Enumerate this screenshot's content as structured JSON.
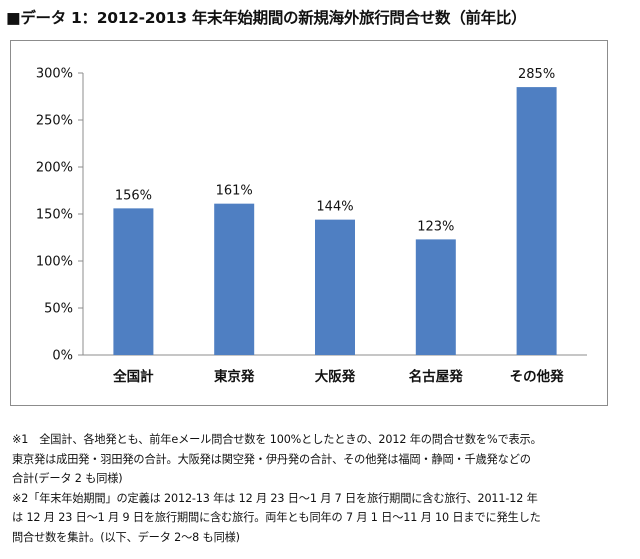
{
  "title": "■データ 1：2012-2013 年末年始期間の新規海外旅行問合せ数（前年比）",
  "chart_data": {
    "type": "bar",
    "categories": [
      "全国計",
      "東京発",
      "大阪発",
      "名古屋発",
      "その他発"
    ],
    "values": [
      156,
      161,
      144,
      123,
      285
    ],
    "data_labels": [
      "156%",
      "161%",
      "144%",
      "123%",
      "285%"
    ],
    "ylim": [
      0,
      300
    ],
    "yticks": [
      0,
      50,
      100,
      150,
      200,
      250,
      300
    ],
    "ytick_labels": [
      "0%",
      "50%",
      "100%",
      "150%",
      "200%",
      "250%",
      "300%"
    ],
    "xlabel": "",
    "ylabel": "",
    "grid": false,
    "legend": "none",
    "bar_color": "#4f7fc2"
  },
  "notes": [
    "※1　全国計、各地発とも、前年eメール問合せ数を 100%としたときの、2012 年の問合せ数を%で表示。",
    "東京発は成田発・羽田発の合計。大阪発は関空発・伊丹発の合計、その他発は福岡・静岡・千歳発などの",
    "合計(データ 2 も同様)",
    "※2「年末年始期間」の定義は 2012-13 年は 12 月 23 日～1 月 7 日を旅行期間に含む旅行、2011-12 年",
    "は 12 月 23 日～1 月 9 日を旅行期間に含む旅行。両年とも同年の 7 月 1 日～11 月 10 日までに発生した",
    "問合せ数を集計。(以下、データ 2～8 も同様)"
  ]
}
